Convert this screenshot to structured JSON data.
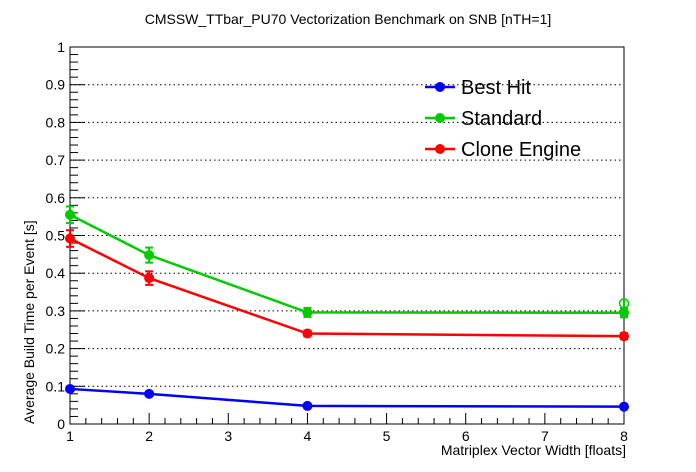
{
  "chart_data": {
    "type": "line",
    "title": "CMSSW_TTbar_PU70 Vectorization Benchmark on SNB [nTH=1]",
    "xlabel": "Matriplex Vector Width [floats]",
    "ylabel": "Average Build Time per Event [s]",
    "xlim": [
      1,
      8
    ],
    "ylim": [
      0,
      1
    ],
    "grid": "horizontal dotted",
    "legend_position": "top-right",
    "x_ticks": [
      "1",
      "2",
      "3",
      "4",
      "5",
      "6",
      "7",
      "8"
    ],
    "y_ticks": [
      "0",
      "0.1",
      "0.2",
      "0.3",
      "0.4",
      "0.5",
      "0.6",
      "0.7",
      "0.8",
      "0.9",
      "1"
    ],
    "series": [
      {
        "name": "Best Hit",
        "color": "#0000ff",
        "x": [
          1,
          2,
          4,
          8
        ],
        "y": [
          0.093,
          0.08,
          0.048,
          0.046
        ],
        "err": [
          0.004,
          0.003,
          0.002,
          0.002
        ]
      },
      {
        "name": "Standard",
        "color": "#00cc00",
        "x": [
          1,
          2,
          4,
          8
        ],
        "y": [
          0.555,
          0.448,
          0.296,
          0.295
        ],
        "err": [
          0.022,
          0.02,
          0.012,
          0.012
        ]
      },
      {
        "name": "Clone Engine",
        "color": "#ff0000",
        "x": [
          1,
          2,
          4,
          8
        ],
        "y": [
          0.492,
          0.387,
          0.24,
          0.233
        ],
        "err": [
          0.022,
          0.018,
          0.008,
          0.008
        ]
      }
    ],
    "extra_points": [
      {
        "series": "Standard",
        "x": 8,
        "y": 0.32,
        "err": 0.012,
        "marker": "open-circle"
      }
    ]
  }
}
